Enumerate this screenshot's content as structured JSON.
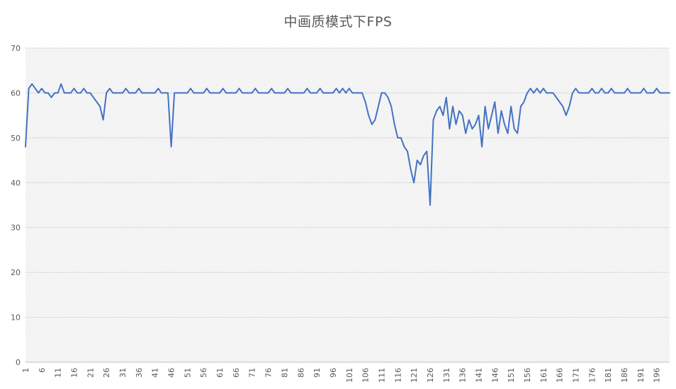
{
  "chart_data": {
    "type": "line",
    "title": "中画质模式下FPS",
    "series_name": "FPS",
    "x_range": [
      1,
      200
    ],
    "ylim": [
      0,
      70
    ],
    "y_ticks": [
      0,
      10,
      20,
      30,
      40,
      50,
      60,
      70
    ],
    "x_tick_labels": [
      "1",
      "6",
      "11",
      "16",
      "21",
      "26",
      "31",
      "36",
      "41",
      "46",
      "51",
      "56",
      "61",
      "66",
      "71",
      "76",
      "81",
      "86",
      "91",
      "96",
      "101",
      "106",
      "111",
      "116",
      "121",
      "126",
      "131",
      "136",
      "141",
      "146",
      "151",
      "156",
      "161",
      "166",
      "171",
      "176",
      "181",
      "186",
      "191",
      "196"
    ],
    "grid": true,
    "legend": "none",
    "line_color": "#4472C4",
    "title_color": "#595959",
    "axis_label_color": "#595959",
    "gridline_color": "#dcdcdc",
    "axis_line_color": "#bfbfbf",
    "plot_bg_color": "#fafafa",
    "plot_hatch_color": "#e7e7e7",
    "values": [
      48,
      61,
      62,
      61,
      60,
      61,
      60,
      60,
      59,
      60,
      60,
      62,
      60,
      60,
      60,
      61,
      60,
      60,
      61,
      60,
      60,
      59,
      58,
      57,
      54,
      60,
      61,
      60,
      60,
      60,
      60,
      61,
      60,
      60,
      60,
      61,
      60,
      60,
      60,
      60,
      60,
      61,
      60,
      60,
      60,
      48,
      60,
      60,
      60,
      60,
      60,
      61,
      60,
      60,
      60,
      60,
      61,
      60,
      60,
      60,
      60,
      61,
      60,
      60,
      60,
      60,
      61,
      60,
      60,
      60,
      60,
      61,
      60,
      60,
      60,
      60,
      61,
      60,
      60,
      60,
      60,
      61,
      60,
      60,
      60,
      60,
      60,
      61,
      60,
      60,
      60,
      61,
      60,
      60,
      60,
      60,
      61,
      60,
      61,
      60,
      61,
      60,
      60,
      60,
      60,
      58,
      55,
      53,
      54,
      57,
      60,
      60,
      59,
      57,
      53,
      50,
      50,
      48,
      47,
      43,
      40,
      45,
      44,
      46,
      47,
      35,
      54,
      56,
      57,
      55,
      59,
      52,
      57,
      53,
      56,
      55,
      51,
      54,
      52,
      53,
      55,
      48,
      57,
      52,
      55,
      58,
      51,
      56,
      53,
      51,
      57,
      52,
      51,
      57,
      58,
      60,
      61,
      60,
      61,
      60,
      61,
      60,
      60,
      60,
      59,
      58,
      57,
      55,
      57,
      60,
      61,
      60,
      60,
      60,
      60,
      61,
      60,
      60,
      61,
      60,
      60,
      61,
      60,
      60,
      60,
      60,
      61,
      60,
      60,
      60,
      60,
      61,
      60,
      60,
      60,
      61,
      60,
      60,
      60,
      60
    ]
  }
}
